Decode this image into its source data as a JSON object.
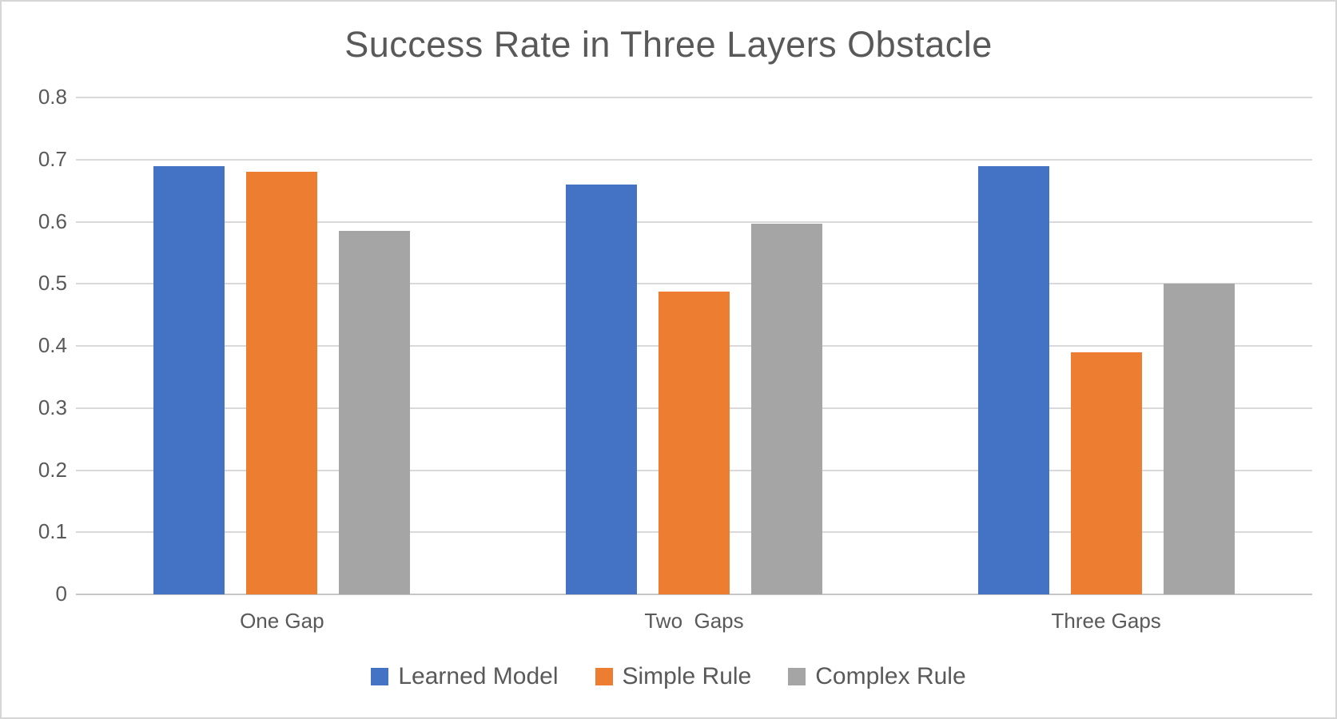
{
  "chart_data": {
    "type": "bar",
    "title": "Success Rate in Three Layers Obstacle",
    "categories": [
      "One Gap",
      "Two  Gaps",
      "Three Gaps"
    ],
    "series": [
      {
        "name": "Learned Model",
        "color": "#4472C4",
        "values": [
          0.69,
          0.66,
          0.69
        ]
      },
      {
        "name": "Simple Rule",
        "color": "#ED7D31",
        "values": [
          0.68,
          0.487,
          0.39
        ]
      },
      {
        "name": "Complex Rule",
        "color": "#A5A5A5",
        "values": [
          0.585,
          0.597,
          0.5
        ]
      }
    ],
    "xlabel": "",
    "ylabel": "",
    "ylim": [
      0,
      0.8
    ],
    "ytick_step": 0.1,
    "ytick_labels": [
      "0",
      "0.1",
      "0.2",
      "0.3",
      "0.4",
      "0.5",
      "0.6",
      "0.7",
      "0.8"
    ],
    "grid": true,
    "legend_position": "bottom",
    "colors": {
      "text": "#595959",
      "gridline": "#D9D9D9",
      "axis_line": "#C6C6C6",
      "background": "#FFFFFF",
      "border": "#D6D6D6"
    }
  }
}
